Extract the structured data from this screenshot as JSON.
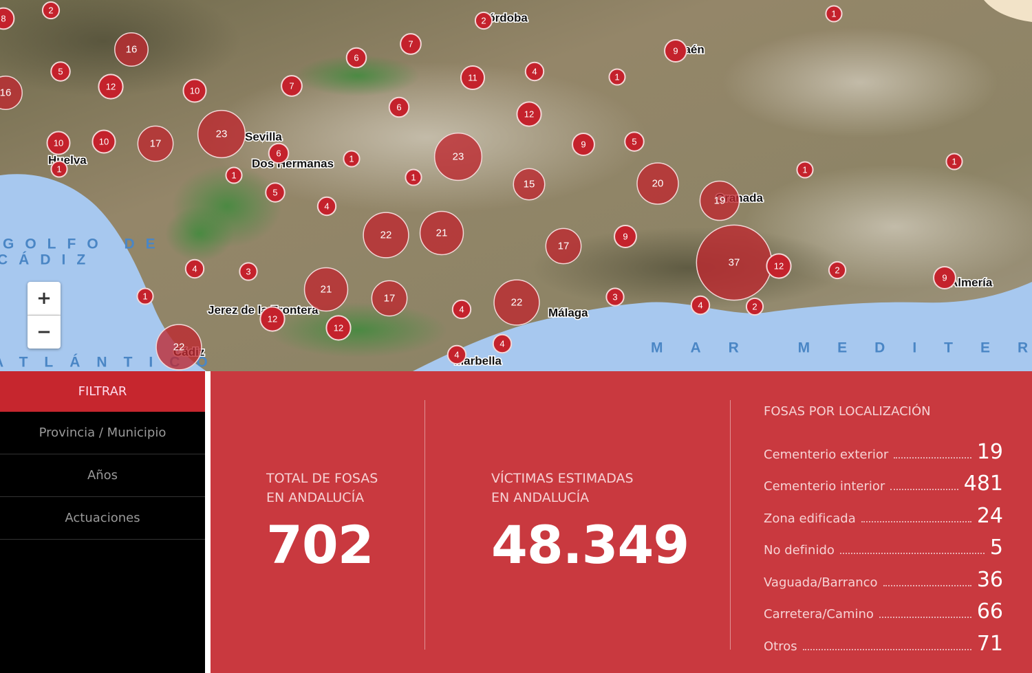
{
  "map": {
    "places": [
      "Córdoba",
      "Jaén",
      "Sevilla",
      "Huelva",
      "Dos Hermanas",
      "Granada",
      "Almería",
      "Jerez de la Frontera",
      "Málaga",
      "Cádiz",
      "Marbella"
    ],
    "seas": [
      "GOLFO DE",
      "CÁDIZ",
      "ATLÁNTICO",
      "MAR MEDITERRÁNEO"
    ],
    "clusters": [
      2,
      8,
      16,
      5,
      12,
      16,
      10,
      7,
      6,
      7,
      2,
      11,
      4,
      6,
      12,
      1,
      9,
      1,
      10,
      10,
      17,
      23,
      6,
      1,
      1,
      1,
      1,
      23,
      9,
      5,
      15,
      20,
      19,
      1,
      1,
      5,
      4,
      22,
      21,
      17,
      9,
      37,
      12,
      2,
      9,
      4,
      3,
      1,
      21,
      17,
      4,
      22,
      3,
      4,
      2,
      12,
      12,
      22,
      4,
      4
    ],
    "zoom_in": "+",
    "zoom_out": "−"
  },
  "sidebar": {
    "header": "FILTRAR",
    "items": [
      "Provincia / Municipio",
      "Años",
      "Actuaciones"
    ]
  },
  "stats": [
    {
      "label": [
        "TOTAL DE FOSAS",
        "EN ANDALUCÍA"
      ],
      "value": "702"
    },
    {
      "label": [
        "VÍCTIMAS ESTIMADAS",
        "EN ANDALUCÍA"
      ],
      "value": "48.349"
    }
  ],
  "locations": {
    "title": "FOSAS POR LOCALIZACIÓN",
    "rows": [
      {
        "label": "Cementerio exterior",
        "value": 19
      },
      {
        "label": "Cementerio interior",
        "value": 481
      },
      {
        "label": "Zona edificada",
        "value": 24
      },
      {
        "label": "No definido",
        "value": 5
      },
      {
        "label": "Vaguada/Barranco",
        "value": 36
      },
      {
        "label": "Carretera/Camino",
        "value": 66
      },
      {
        "label": "Otros",
        "value": 71
      }
    ]
  }
}
